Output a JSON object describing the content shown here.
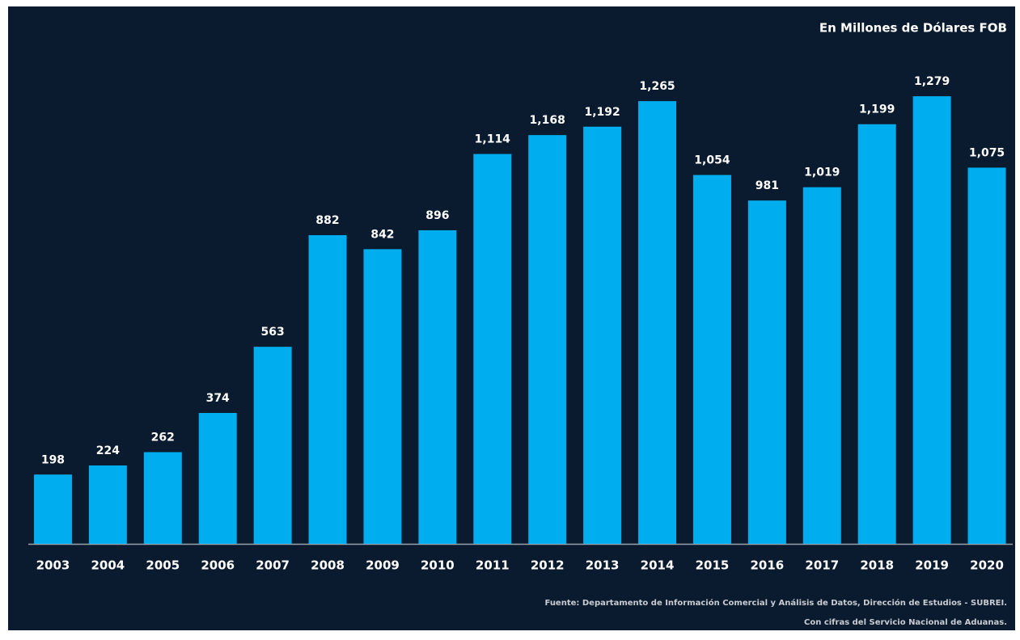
{
  "chart_data": {
    "type": "bar",
    "title": "En Millones de Dólares FOB",
    "categories": [
      "2003",
      "2004",
      "2005",
      "2006",
      "2007",
      "2008",
      "2009",
      "2010",
      "2011",
      "2012",
      "2013",
      "2014",
      "2015",
      "2016",
      "2017",
      "2018",
      "2019",
      "2020"
    ],
    "values": [
      198,
      224,
      262,
      374,
      563,
      882,
      842,
      896,
      1114,
      1168,
      1192,
      1265,
      1054,
      981,
      1019,
      1199,
      1279,
      1075
    ],
    "value_labels": [
      "198",
      "224",
      "262",
      "374",
      "563",
      "882",
      "842",
      "896",
      "1,114",
      "1,168",
      "1,192",
      "1,265",
      "1,054",
      "981",
      "1,019",
      "1,199",
      "1,279",
      "1,075"
    ],
    "color": "#00aeef",
    "ylim": [
      0,
      1300
    ],
    "source": [
      "Fuente: Departamento de Información Comercial y Análisis de Datos, Dirección de Estudios - SUBREI.",
      "Con cifras del Servicio Nacional de Aduanas."
    ]
  }
}
